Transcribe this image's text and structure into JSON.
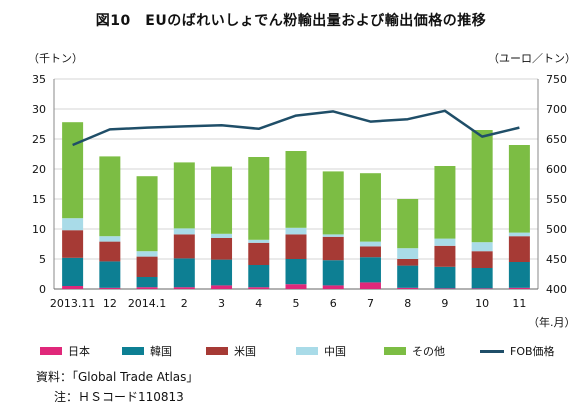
{
  "title": "図10　EUのばれいしょでん粉輸出量および輸出価格の推移",
  "left_axis_unit": "（千トン）",
  "right_axis_unit": "（ユーロ／トン）",
  "x_axis_unit": "（年.月）",
  "source_note": "資料：「Global Trade Atlas」",
  "hs_note": "注：ＨＳコード110813",
  "colors": {
    "japan": "#e0287a",
    "korea": "#0d7f93",
    "usa": "#a63a35",
    "china": "#a9dbe8",
    "other": "#7cbd44",
    "fob": "#1f4e68"
  },
  "chart_data": {
    "type": "bar",
    "stacked": true,
    "categories": [
      "2013.11",
      "12",
      "2014.1",
      "2",
      "3",
      "4",
      "5",
      "6",
      "7",
      "8",
      "9",
      "10",
      "11"
    ],
    "series": [
      {
        "name": "日本",
        "values": [
          0.5,
          0.2,
          0.3,
          0.3,
          0.6,
          0.3,
          0.8,
          0.6,
          1.1,
          0.2,
          0.1,
          0.1,
          0.2
        ]
      },
      {
        "name": "韓国",
        "values": [
          4.7,
          4.4,
          1.7,
          4.8,
          4.3,
          3.7,
          4.2,
          4.2,
          4.2,
          3.7,
          3.6,
          3.4,
          4.3
        ]
      },
      {
        "name": "米国",
        "values": [
          4.6,
          3.3,
          3.4,
          4.0,
          3.6,
          3.7,
          4.1,
          3.9,
          1.8,
          1.1,
          3.5,
          2.8,
          4.3
        ]
      },
      {
        "name": "中国",
        "values": [
          2.0,
          0.9,
          0.9,
          1.0,
          0.7,
          0.5,
          1.1,
          0.4,
          0.8,
          1.8,
          1.2,
          1.5,
          0.6
        ]
      },
      {
        "name": "その他",
        "values": [
          16.0,
          13.3,
          12.5,
          11.0,
          11.2,
          13.8,
          12.8,
          10.5,
          11.4,
          8.2,
          12.1,
          18.7,
          14.6
        ]
      }
    ],
    "line": {
      "name": "FOB価格",
      "axis": "right",
      "values": [
        640,
        666,
        669,
        671,
        673,
        667,
        689,
        696,
        679,
        683,
        697,
        654,
        669
      ]
    },
    "y_left": {
      "min": 0,
      "max": 35,
      "ticks": [
        0,
        5,
        10,
        15,
        20,
        25,
        30,
        35
      ]
    },
    "y_right": {
      "min": 400,
      "max": 750,
      "ticks": [
        400,
        450,
        500,
        550,
        600,
        650,
        700,
        750
      ]
    },
    "grid": "horizontal",
    "legend_position": "bottom"
  }
}
